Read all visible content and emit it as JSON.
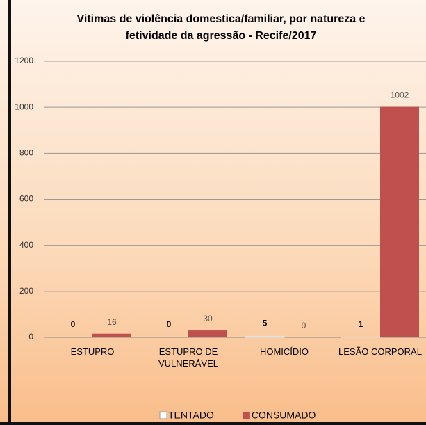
{
  "chart_data": {
    "type": "bar",
    "title": "Vitimas de violência domestica/familiar, por natureza e fetividade da agressão - Recife/2017",
    "categories": [
      "ESTUPRO",
      "ESTUPRO DE VULNERÁVEL",
      "HOMICÍDIO",
      "LESÃO CORPORAL"
    ],
    "series": [
      {
        "name": "TENTADO",
        "color": "#ffffff",
        "values": [
          0,
          0,
          5,
          1
        ]
      },
      {
        "name": "CONSUMADO",
        "color": "#c0504d",
        "values": [
          16,
          30,
          0,
          1002
        ]
      }
    ],
    "ylim": [
      0,
      1200
    ],
    "yticks": [
      0,
      200,
      400,
      600,
      800,
      1000,
      1200
    ],
    "grid": true
  }
}
